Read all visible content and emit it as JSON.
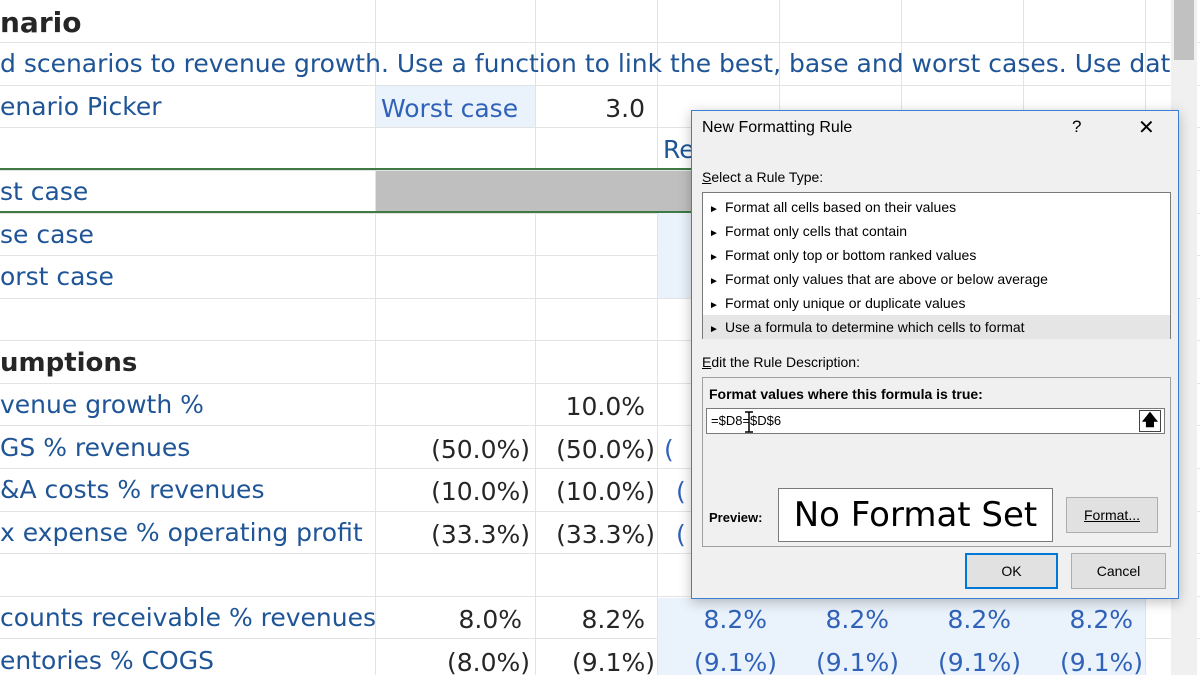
{
  "sheet": {
    "title": "nario",
    "description": "d scenarios to revenue growth. Use a function to link the best, base and worst cases. Use data",
    "picker_label": "enario Picker",
    "picker_value": "Worst case",
    "picker_number": "3.0",
    "partial_re": "Re",
    "rows": {
      "best": "st case",
      "base": "se case",
      "worst": "orst case",
      "assumptions": "umptions",
      "revenue_growth": "venue growth %",
      "cogs": "GS % revenues",
      "sga": "&A costs % revenues",
      "tax": "x expense % operating profit",
      "ar": "counts receivable % revenues",
      "inv": "entories % COGS"
    },
    "values": {
      "rev_d": "10.0%",
      "cogs_c": "(50.0%)",
      "cogs_d": "(50.0%)",
      "cogs_e": "(",
      "sga_c": "(10.0%)",
      "sga_d": "(10.0%)",
      "sga_e": "(",
      "tax_c": "(33.3%)",
      "tax_d": "(33.3%)",
      "tax_e": "(",
      "ar": [
        "8.0%",
        "8.2%",
        "8.2%",
        "8.2%",
        "8.2%",
        "8.2%"
      ],
      "inv": [
        "(8.0%)",
        "(9.1%)",
        "(9.1%)",
        "(9.1%)",
        "(9.1%)",
        "(9.1%)"
      ]
    }
  },
  "dialog": {
    "title": "New Formatting Rule",
    "help": "?",
    "close": "✕",
    "select_type_label": "Select a Rule Type:",
    "rule_types": [
      "Format all cells based on their values",
      "Format only cells that contain",
      "Format only top or bottom ranked values",
      "Format only values that are above or below average",
      "Format only unique or duplicate values",
      "Use a formula to determine which cells to format"
    ],
    "edit_label": "Edit the Rule Description:",
    "formula_label": "Format values where this formula is true:",
    "formula_value": "=$D8=$D$6",
    "collapse_glyph": "🡅",
    "preview_label": "Preview:",
    "preview_text": "No Format Set",
    "format_button": "Format...",
    "ok_button": "OK",
    "cancel_button": "Cancel"
  },
  "colors": {
    "text_blue": "#1f5597",
    "input_blue": "#2f62b8",
    "dialog_border": "#3a7fd3",
    "selected_row": "#e5e5e5"
  }
}
